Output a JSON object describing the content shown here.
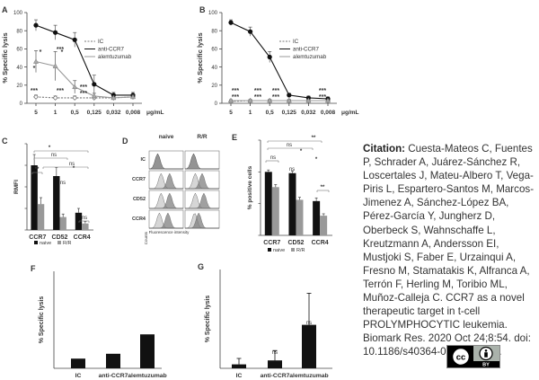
{
  "citation": {
    "label": "Citation:",
    "authors": "Cuesta-Mateos C, Fuentes P, Schrader A, Juárez-Sánchez R, Loscertales J, Mateu-Albero T, Vega-Piris L, Espartero-Santos M, Marcos-Jimenez A, Sánchez-López BA, Pérez-García Y, Jungherz D, Oberbeck S, Wahnschaffe L, Kreutzmann A, Andersson EI, Mustjoki S, Faber E, Urzainqui A, Fresno M, Stamatakis K, Alfranca A, Terrón F, Herling M, Toribio ML, Muñoz-Calleja C.",
    "title": "CCR7 as a novel therapeutic target in t-cell PROLYMPHOCYTIC leukemia.",
    "journal": "Biomark Res. 2020 Oct 24;8:54.",
    "doi": "doi: 10.1186/s40364-020-00234-z.",
    "license_cc": "cc",
    "license_by": "BY"
  },
  "chart_data": [
    {
      "panel": "A",
      "type": "line",
      "ylabel": "% Specific lysis",
      "xunit": "μg/mL",
      "categories": [
        "5",
        "1",
        "0,5",
        "0,125",
        "0,032",
        "0,008"
      ],
      "ylim": [
        0,
        100
      ],
      "yticks": [
        0,
        20,
        40,
        60,
        80,
        100
      ],
      "legend": [
        "IC",
        "anti-CCR7",
        "alemtuzumab"
      ],
      "series": [
        {
          "name": "IC",
          "values": [
            7,
            6,
            6,
            6,
            6,
            7
          ],
          "err": [
            2,
            2,
            2,
            2,
            2,
            2
          ]
        },
        {
          "name": "anti-CCR7",
          "values": [
            86,
            78,
            70,
            21,
            9,
            9
          ],
          "err": [
            6,
            8,
            8,
            10,
            3,
            3
          ]
        },
        {
          "name": "alemtuzumab",
          "values": [
            46,
            41,
            18,
            8,
            6,
            7
          ],
          "err": [
            12,
            16,
            7,
            3,
            2,
            2
          ]
        }
      ],
      "significance": [
        "***",
        "*",
        "***",
        "***",
        "*",
        "*",
        "***",
        "***"
      ]
    },
    {
      "panel": "B",
      "type": "line",
      "ylabel": "% Specific lysis",
      "xunit": "μg/mL",
      "categories": [
        "5",
        "1",
        "0,5",
        "0,125",
        "0,032",
        "0,008"
      ],
      "ylim": [
        0,
        100
      ],
      "yticks": [
        0,
        20,
        40,
        60,
        80,
        100
      ],
      "legend": [
        "IC",
        "anti-CCR7",
        "alemtuzumab"
      ],
      "series": [
        {
          "name": "IC",
          "values": [
            2,
            3,
            3,
            3,
            3,
            3
          ],
          "err": [
            1,
            1,
            1,
            1,
            1,
            1
          ]
        },
        {
          "name": "anti-CCR7",
          "values": [
            89,
            79,
            51,
            9,
            6,
            5
          ],
          "err": [
            3,
            5,
            6,
            2,
            2,
            2
          ]
        },
        {
          "name": "alemtuzumab",
          "values": [
            3,
            3,
            3,
            3,
            3,
            3
          ],
          "err": [
            1,
            1,
            1,
            1,
            1,
            1
          ]
        }
      ],
      "significance": [
        "***",
        "***",
        "***",
        "***",
        "***",
        "***",
        "***",
        "***"
      ]
    },
    {
      "panel": "C",
      "type": "bar",
      "ylabel": "RMFI",
      "categories": [
        "CCR7",
        "CD52",
        "CCR4"
      ],
      "ylim": [
        0,
        20
      ],
      "yticks": [
        0,
        5,
        10,
        15,
        20
      ],
      "legend": [
        "naive",
        "R/R"
      ],
      "series": [
        {
          "name": "naive",
          "values": [
            15,
            12.5,
            4
          ],
          "err": [
            2.5,
            2,
            1
          ]
        },
        {
          "name": "R/R",
          "values": [
            6,
            3,
            1.5
          ],
          "err": [
            1.5,
            0.7,
            0.5
          ]
        }
      ],
      "annotations": [
        "**",
        "*",
        "ns",
        "ns",
        "*",
        "ns",
        "ns"
      ]
    },
    {
      "panel": "D",
      "type": "histogram",
      "columns": [
        "naive",
        "R/R"
      ],
      "rows": [
        "IC",
        "CCR7",
        "CD52",
        "CCR4"
      ],
      "ylabel": "Counts",
      "xlabel": "Fluorescence intensity"
    },
    {
      "panel": "E",
      "type": "bar",
      "ylabel": "% positive cells",
      "categories": [
        "CCR7",
        "CD52",
        "CCR4"
      ],
      "ylim": [
        0,
        150
      ],
      "yticks": [
        0,
        50,
        100,
        150
      ],
      "legend": [
        "naive",
        "R/R"
      ],
      "series": [
        {
          "name": "naive",
          "values": [
            100,
            98,
            54
          ],
          "err": [
            3,
            3,
            5
          ]
        },
        {
          "name": "R/R",
          "values": [
            76,
            56,
            31
          ],
          "err": [
            4,
            4,
            3
          ]
        }
      ],
      "annotations": [
        "ns",
        "**",
        "ns",
        "*",
        "ns",
        "*",
        "**"
      ]
    },
    {
      "panel": "F",
      "type": "bar",
      "ylabel": "% Specific lysis",
      "categories": [
        "IC",
        "anti-CCR7",
        "alemtuzumab"
      ],
      "ylim": [
        0,
        100
      ],
      "values": [
        10,
        15,
        35
      ]
    },
    {
      "panel": "G",
      "type": "bar",
      "ylabel": "% Specific lysis",
      "categories": [
        "IC",
        "anti-CCR7",
        "alemtuzumab"
      ],
      "ylim": [
        0,
        50
      ],
      "values": [
        2,
        4,
        22
      ],
      "err": [
        3,
        5,
        16
      ],
      "annotations": [
        "ns",
        "ns"
      ]
    }
  ]
}
